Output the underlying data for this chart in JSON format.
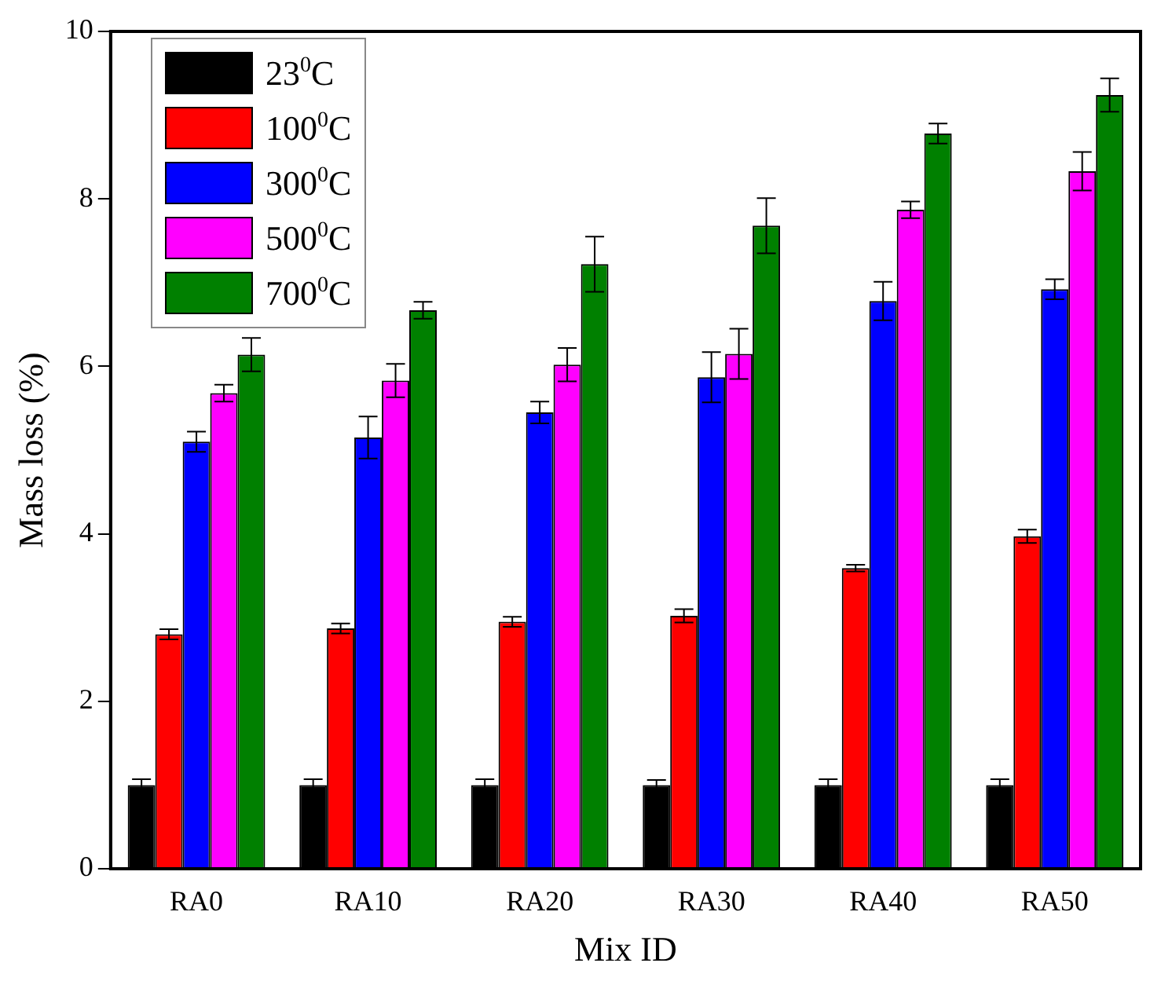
{
  "chart_data": {
    "type": "bar",
    "xlabel": "Mix ID",
    "ylabel": "Mass loss (%)",
    "categories": [
      "RA0",
      "RA10",
      "RA20",
      "RA30",
      "RA40",
      "RA50"
    ],
    "series": [
      {
        "name": "23$^{0}$C",
        "color": "#000000",
        "values": [
          1.0,
          1.0,
          1.0,
          1.0,
          1.0,
          1.0
        ],
        "errors": [
          0.07,
          0.07,
          0.07,
          0.06,
          0.07,
          0.07
        ]
      },
      {
        "name": "100$^{0}$C",
        "color": "#ff0000",
        "values": [
          2.8,
          2.87,
          2.95,
          3.02,
          3.59,
          3.97
        ],
        "errors": [
          0.06,
          0.06,
          0.06,
          0.08,
          0.04,
          0.08
        ]
      },
      {
        "name": "300$^{0}$C",
        "color": "#0000ff",
        "values": [
          5.1,
          5.15,
          5.45,
          5.87,
          6.78,
          6.92
        ],
        "errors": [
          0.12,
          0.25,
          0.13,
          0.3,
          0.23,
          0.12
        ]
      },
      {
        "name": "500$^{0}$C",
        "color": "#ff00ff",
        "values": [
          5.68,
          5.83,
          6.02,
          6.15,
          7.87,
          8.33
        ],
        "errors": [
          0.1,
          0.2,
          0.2,
          0.3,
          0.1,
          0.23
        ]
      },
      {
        "name": "700$^{0}$C",
        "color": "#008000",
        "values": [
          6.14,
          6.67,
          7.22,
          7.68,
          8.78,
          9.24
        ],
        "errors": [
          0.2,
          0.1,
          0.33,
          0.33,
          0.12,
          0.2
        ]
      }
    ],
    "ylim": [
      0,
      10
    ],
    "yticks": [
      0,
      2,
      4,
      6,
      8,
      10
    ],
    "grid": false,
    "legend": "top left"
  }
}
